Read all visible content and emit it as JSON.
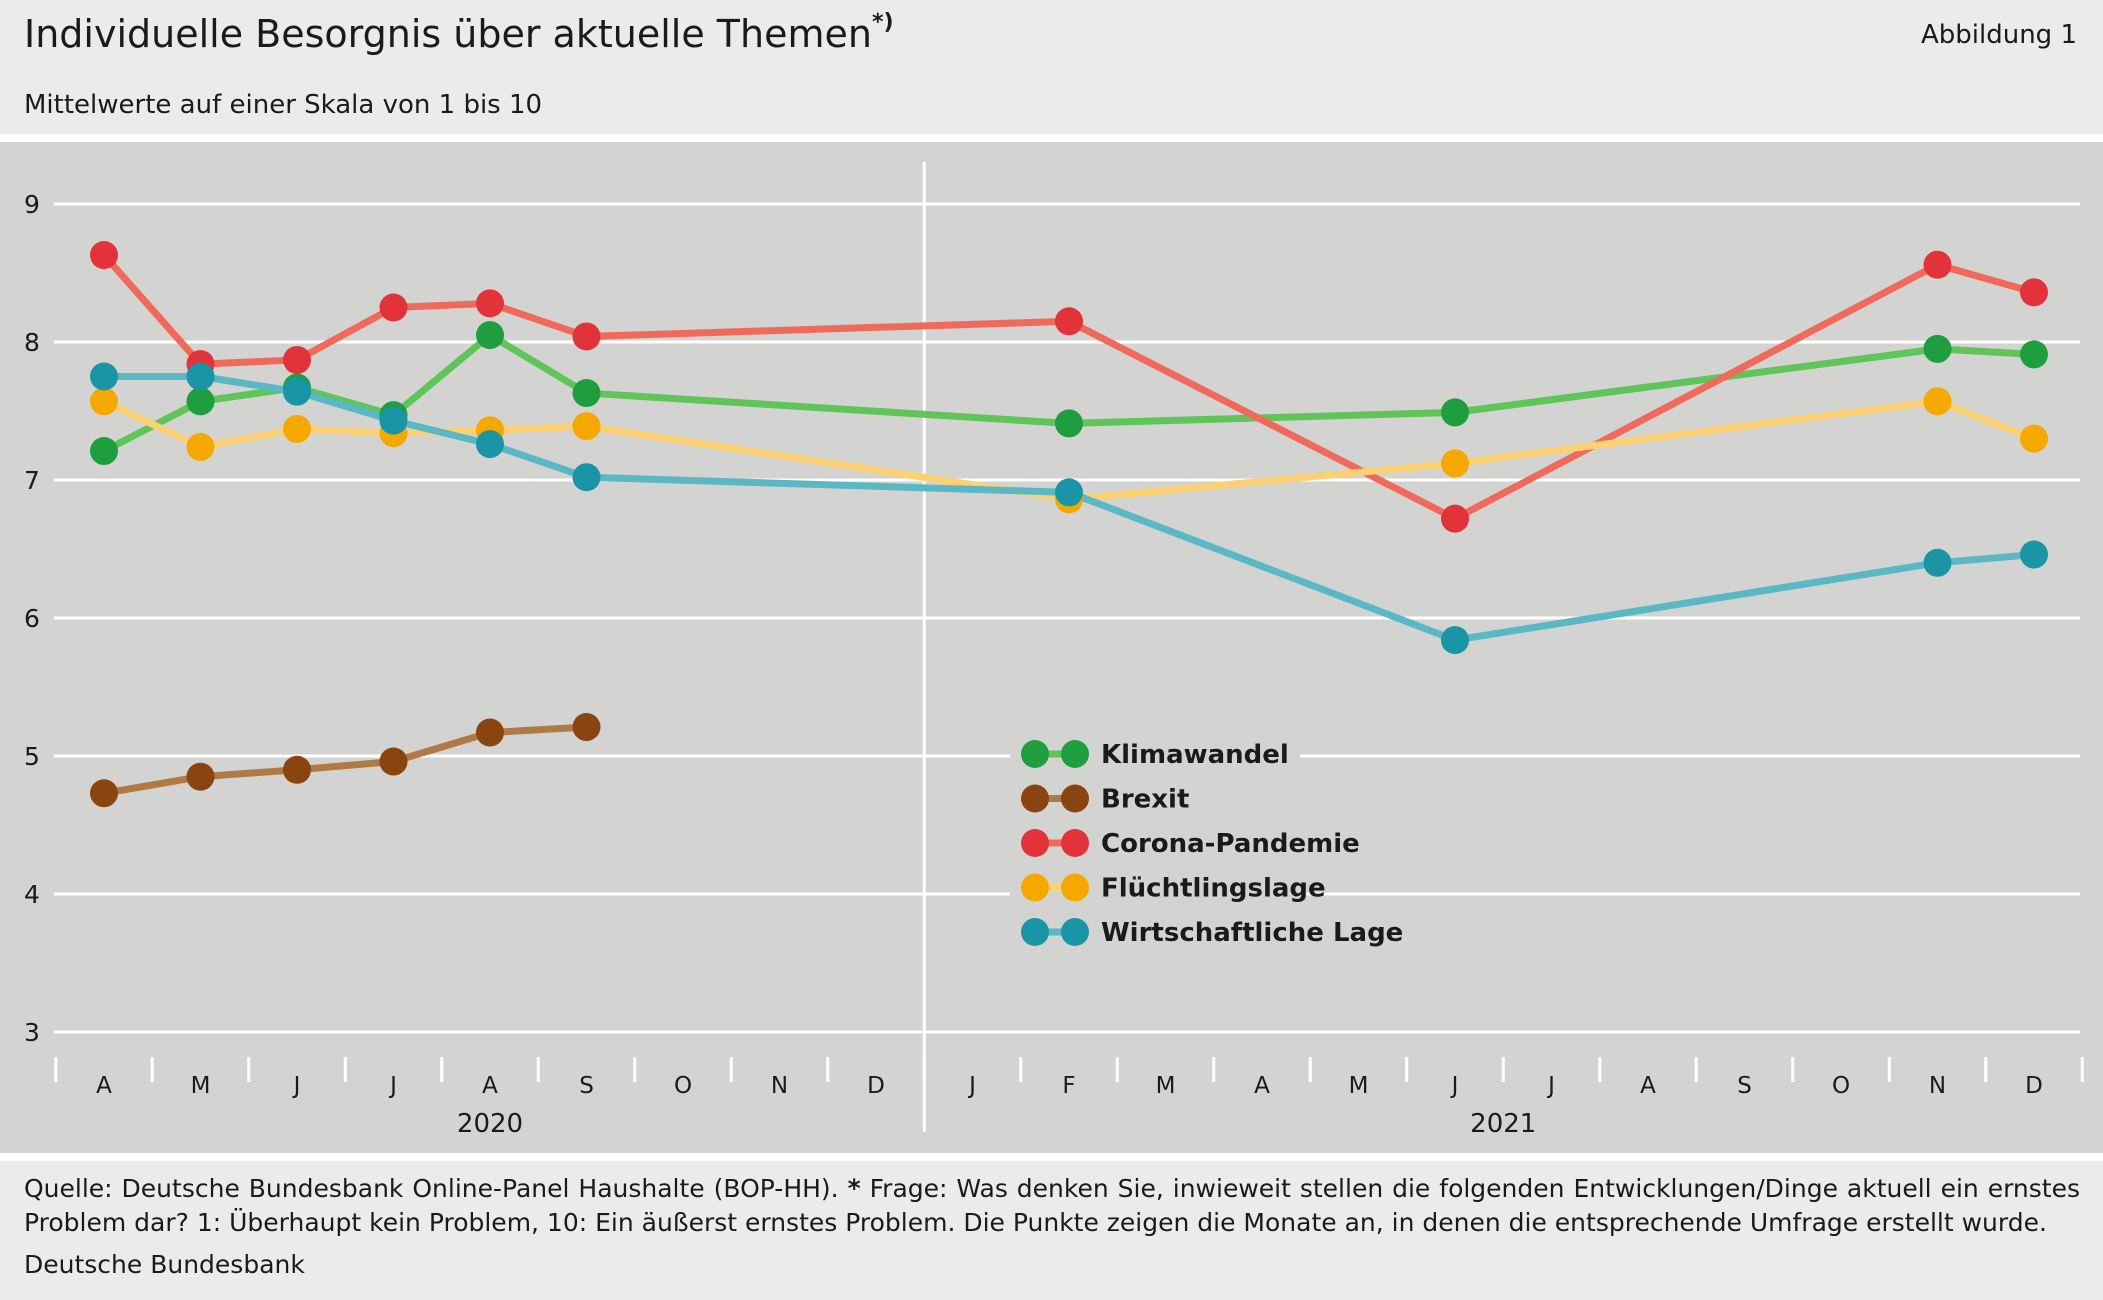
{
  "header": {
    "title": "Individuelle Besorgnis über aktuelle Themen",
    "title_footnote_mark": "*)",
    "subtitle": "Mittelwerte auf einer Skala von 1 bis 10",
    "figure_number": "Abbildung 1"
  },
  "footer": {
    "note_source": "Quelle: Deutsche Bundesbank Online-Panel Haushalte (BOP-HH).",
    "note_star": "*",
    "note_question": "Frage: Was denken Sie, inwieweit stellen die folgenden Entwicklungen/Dinge aktuell ein ernstes Problem dar? 1: Überhaupt kein Problem, 10: Ein äußerst ernstes Problem. Die Punkte zeigen die Monate an, in denen die entsprechende Umfrage erstellt wurde.",
    "organization": "Deutsche Bundesbank"
  },
  "chart_data": {
    "type": "line",
    "title": "Individuelle Besorgnis über aktuelle Themen",
    "ylim": [
      3,
      9
    ],
    "yticks": [
      3,
      4,
      5,
      6,
      7,
      8,
      9
    ],
    "grid": true,
    "legend_position": "center-right",
    "x_categories": [
      "A",
      "M",
      "J",
      "J",
      "A",
      "S",
      "O",
      "N",
      "D",
      "J",
      "F",
      "M",
      "A",
      "M",
      "J",
      "J",
      "A",
      "S",
      "O",
      "N",
      "D"
    ],
    "x_periods": [
      "2020-04",
      "2020-05",
      "2020-06",
      "2020-07",
      "2020-08",
      "2020-09",
      "2020-10",
      "2020-11",
      "2020-12",
      "2021-01",
      "2021-02",
      "2021-03",
      "2021-04",
      "2021-05",
      "2021-06",
      "2021-07",
      "2021-08",
      "2021-09",
      "2021-10",
      "2021-11",
      "2021-12"
    ],
    "year_labels": [
      {
        "label": "2020",
        "first_period": "2020-04",
        "last_period": "2020-12"
      },
      {
        "label": "2021",
        "first_period": "2021-01",
        "last_period": "2021-12"
      }
    ],
    "series": [
      {
        "name": "Klimawandel",
        "line_color": "#5fc45a",
        "marker_color": "#1e9e3e",
        "points": [
          {
            "x": "2020-04",
            "y": 7.21
          },
          {
            "x": "2020-05",
            "y": 7.57
          },
          {
            "x": "2020-06",
            "y": 7.67
          },
          {
            "x": "2020-07",
            "y": 7.47
          },
          {
            "x": "2020-08",
            "y": 8.05
          },
          {
            "x": "2020-09",
            "y": 7.63
          },
          {
            "x": "2021-02",
            "y": 7.41
          },
          {
            "x": "2021-06",
            "y": 7.49
          },
          {
            "x": "2021-11",
            "y": 7.95
          },
          {
            "x": "2021-12",
            "y": 7.91
          }
        ]
      },
      {
        "name": "Brexit",
        "line_color": "#b07a47",
        "marker_color": "#8a4410",
        "points": [
          {
            "x": "2020-04",
            "y": 4.73
          },
          {
            "x": "2020-05",
            "y": 4.85
          },
          {
            "x": "2020-06",
            "y": 4.9
          },
          {
            "x": "2020-07",
            "y": 4.96
          },
          {
            "x": "2020-08",
            "y": 5.17
          },
          {
            "x": "2020-09",
            "y": 5.21
          }
        ]
      },
      {
        "name": "Corona-Pandemie",
        "line_color": "#f06a5b",
        "marker_color": "#e2323a",
        "points": [
          {
            "x": "2020-04",
            "y": 8.63
          },
          {
            "x": "2020-05",
            "y": 7.84
          },
          {
            "x": "2020-06",
            "y": 7.87
          },
          {
            "x": "2020-07",
            "y": 8.25
          },
          {
            "x": "2020-08",
            "y": 8.28
          },
          {
            "x": "2020-09",
            "y": 8.04
          },
          {
            "x": "2021-02",
            "y": 8.15
          },
          {
            "x": "2021-06",
            "y": 6.72
          },
          {
            "x": "2021-11",
            "y": 8.56
          },
          {
            "x": "2021-12",
            "y": 8.36
          }
        ]
      },
      {
        "name": "Flüchtlingslage",
        "line_color": "#fcd173",
        "marker_color": "#f5a800",
        "points": [
          {
            "x": "2020-04",
            "y": 7.57
          },
          {
            "x": "2020-05",
            "y": 7.24
          },
          {
            "x": "2020-06",
            "y": 7.37
          },
          {
            "x": "2020-07",
            "y": 7.34
          },
          {
            "x": "2020-08",
            "y": 7.36
          },
          {
            "x": "2020-09",
            "y": 7.39
          },
          {
            "x": "2021-02",
            "y": 6.86
          },
          {
            "x": "2021-06",
            "y": 7.12
          },
          {
            "x": "2021-11",
            "y": 7.57
          },
          {
            "x": "2021-12",
            "y": 7.3
          }
        ]
      },
      {
        "name": "Wirtschaftliche Lage",
        "line_color": "#5ab8c4",
        "marker_color": "#1a95a6",
        "points": [
          {
            "x": "2020-04",
            "y": 7.75
          },
          {
            "x": "2020-05",
            "y": 7.75
          },
          {
            "x": "2020-06",
            "y": 7.64
          },
          {
            "x": "2020-07",
            "y": 7.43
          },
          {
            "x": "2020-08",
            "y": 7.26
          },
          {
            "x": "2020-09",
            "y": 7.02
          },
          {
            "x": "2021-02",
            "y": 6.91
          },
          {
            "x": "2021-06",
            "y": 5.84
          },
          {
            "x": "2021-11",
            "y": 6.4
          },
          {
            "x": "2021-12",
            "y": 6.46
          }
        ]
      }
    ]
  }
}
